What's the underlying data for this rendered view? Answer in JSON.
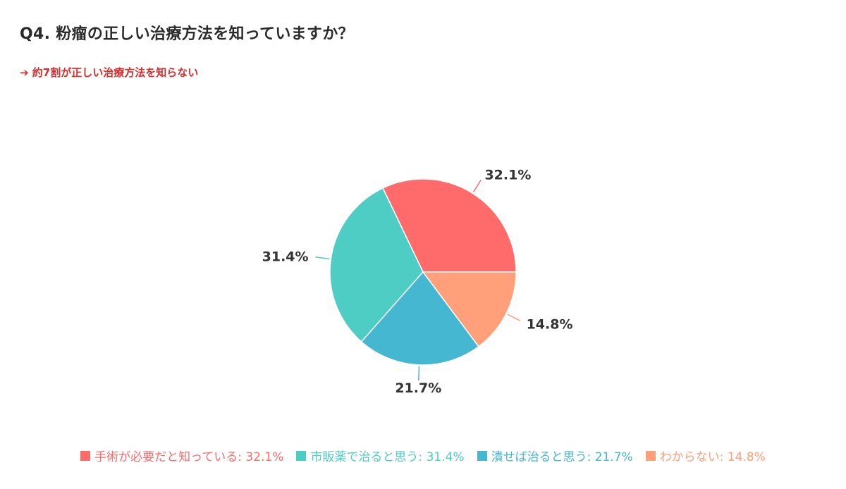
{
  "title": "Q4. 粉瘤の正しい治療方法を知っていますか？",
  "subtitle": "➔ 約7割が正しい治療方法を知らない",
  "chart_data": {
    "type": "pie",
    "legend_position": "bottom",
    "slices": [
      {
        "label": "手術が必要だと知っている",
        "value": 32.1,
        "display": "32.1%",
        "legend_text": "手術が必要だと知っている: 32.1%",
        "color": "#FF6B6B"
      },
      {
        "label": "市販薬で治ると思う",
        "value": 31.4,
        "display": "31.4%",
        "legend_text": "市販薬で治ると思う: 31.4%",
        "color": "#4ECDC4"
      },
      {
        "label": "潰せば治ると思う",
        "value": 21.7,
        "display": "21.7%",
        "legend_text": "潰せば治ると思う: 21.7%",
        "color": "#45B7D1"
      },
      {
        "label": "わからない",
        "value": 14.8,
        "display": "14.8%",
        "legend_text": "わからない: 14.8%",
        "color": "#FFA07A"
      }
    ]
  }
}
